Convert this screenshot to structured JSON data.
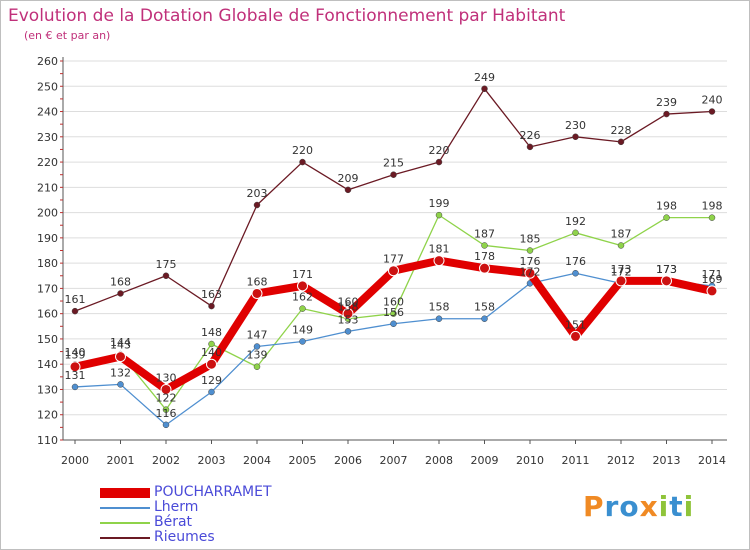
{
  "title": "Evolution de la Dotation Globale de Fonctionnement par Habitant",
  "subtitle": "(en € et par an)",
  "logo_text": "Proxiti",
  "chart_data": {
    "type": "line",
    "title": "Evolution de la Dotation Globale de Fonctionnement par Habitant",
    "subtitle": "(en € et par an)",
    "categories": [
      "2000",
      "2001",
      "2002",
      "2003",
      "2004",
      "2005",
      "2006",
      "2007",
      "2008",
      "2009",
      "2010",
      "2011",
      "2012",
      "2013",
      "2014"
    ],
    "ylim": [
      110,
      260
    ],
    "yticks": [
      110,
      120,
      130,
      140,
      150,
      160,
      170,
      180,
      190,
      200,
      210,
      220,
      230,
      240,
      250,
      260
    ],
    "grid": true,
    "legend_position": "bottom-left",
    "series": [
      {
        "name": "Rieumes",
        "color": "#6b1a24",
        "values": [
          161,
          168,
          175,
          163,
          203,
          220,
          209,
          215,
          220,
          249,
          226,
          230,
          228,
          239,
          240
        ]
      },
      {
        "name": "Bérat",
        "color": "#8fd34a",
        "values": [
          140,
          144,
          122,
          148,
          139,
          162,
          158,
          160,
          199,
          187,
          185,
          192,
          187,
          198,
          198
        ]
      },
      {
        "name": "Lherm",
        "color": "#4f8fd0",
        "values": [
          131,
          132,
          116,
          129,
          147,
          149,
          153,
          156,
          158,
          158,
          172,
          176,
          172,
          173,
          171
        ]
      },
      {
        "name": "POUCHARRAMET",
        "color": "#e00000",
        "values": [
          139,
          143,
          130,
          140,
          168,
          171,
          160,
          177,
          181,
          178,
          176,
          151,
          173,
          173,
          169
        ]
      }
    ],
    "legend": [
      {
        "name": "POUCHARRAMET",
        "color": "#e00000"
      },
      {
        "name": "Lherm",
        "color": "#4f8fd0"
      },
      {
        "name": "Bérat",
        "color": "#8fd34a"
      },
      {
        "name": "Rieumes",
        "color": "#6b1a24"
      }
    ]
  }
}
